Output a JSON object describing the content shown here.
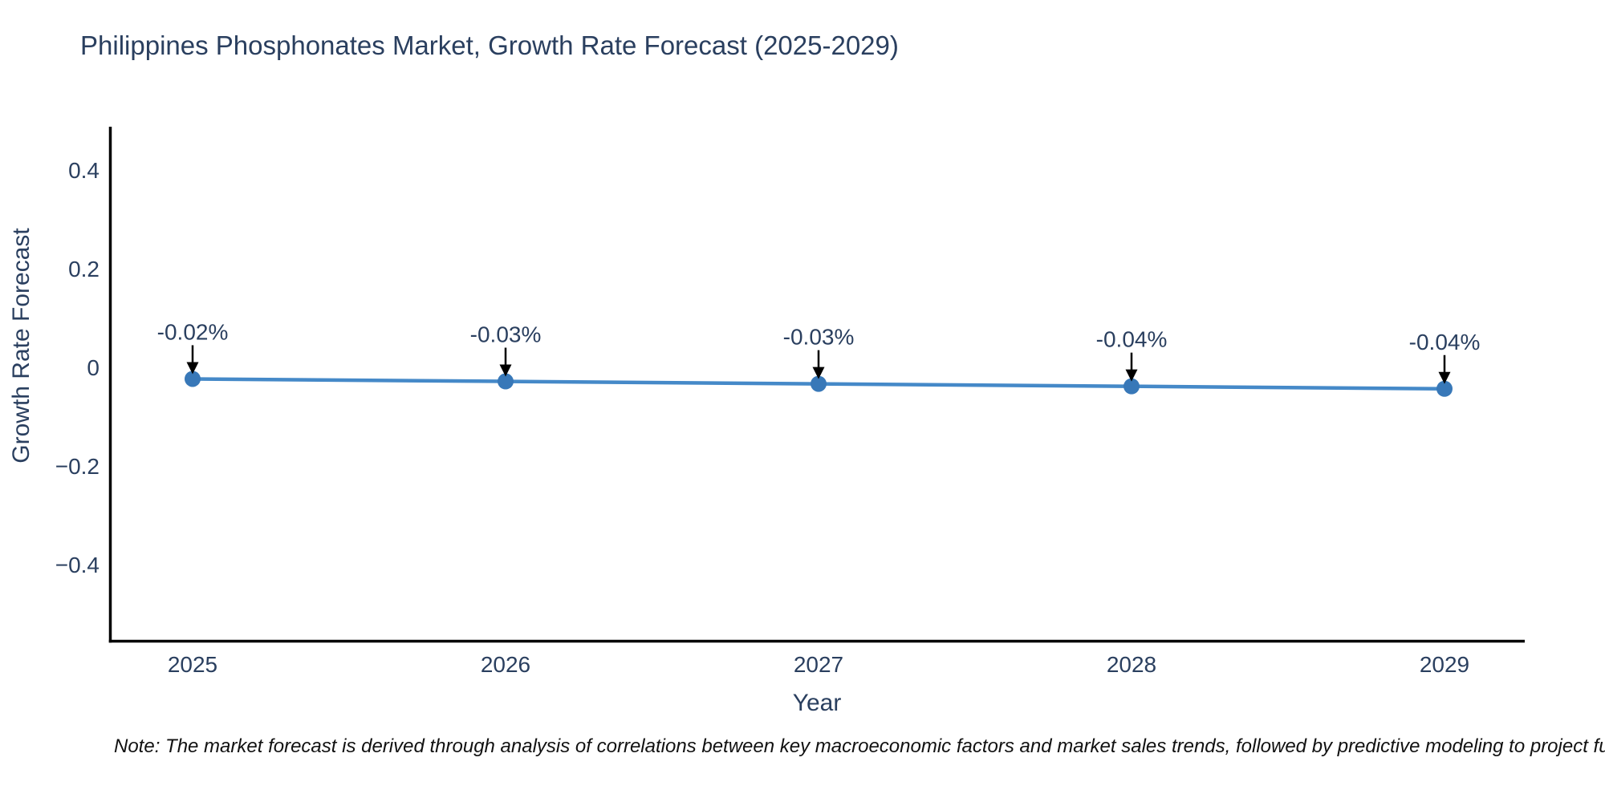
{
  "chart_data": {
    "type": "line",
    "title": "Philippines Phosphonates Market, Growth Rate Forecast (2025-2029)",
    "xlabel": "Year",
    "ylabel": "Growth Rate Forecast",
    "categories": [
      "2025",
      "2026",
      "2027",
      "2028",
      "2029"
    ],
    "series": [
      {
        "name": "Growth Rate Forecast",
        "values": [
          -0.02,
          -0.03,
          -0.03,
          -0.04,
          -0.04
        ]
      }
    ],
    "point_labels": [
      "-0.02%",
      "-0.03%",
      "-0.03%",
      "-0.04%",
      "-0.04%"
    ],
    "plot_values_estimate": [
      -0.0235,
      -0.0285,
      -0.0335,
      -0.0385,
      -0.0435
    ],
    "ytick_labels": [
      "0.4",
      "0.2",
      "0",
      "−0.2",
      "−0.4"
    ],
    "ytick_values": [
      0.4,
      0.2,
      0,
      -0.2,
      -0.4
    ],
    "ylim": [
      -0.556,
      0.488
    ],
    "grid": false,
    "legend": "none",
    "line_color": "#4589c8",
    "marker_color": "#3878b8",
    "axis_color": "#000000",
    "text_color": "#2a3f5f",
    "annotation_arrow_color": "#000000"
  },
  "note": {
    "text": "Note: The market forecast is derived through analysis of correlations between key macroeconomic factors and market sales trends, followed by predictive modeling to project future sales."
  }
}
